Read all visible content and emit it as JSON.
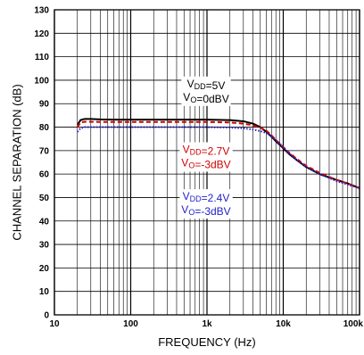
{
  "chart_data": {
    "type": "line",
    "xlabel": "FREQUENCY (Hz)",
    "ylabel": "CHANNEL SEPARATION (dB)",
    "xscale": "log",
    "xlim": [
      10,
      100000
    ],
    "ylim": [
      0,
      130
    ],
    "grid": true,
    "x_ticks": [
      {
        "value": 10,
        "label": "10"
      },
      {
        "value": 100,
        "label": "100"
      },
      {
        "value": 1000,
        "label": "1k"
      },
      {
        "value": 10000,
        "label": "10k"
      },
      {
        "value": 100000,
        "label": "100k"
      }
    ],
    "y_ticks": [
      0,
      10,
      20,
      30,
      40,
      50,
      60,
      70,
      80,
      90,
      100,
      110,
      120,
      130
    ],
    "series": [
      {
        "color": "#000000",
        "dash": "solid",
        "x": [
          20,
          22,
          25,
          30,
          40,
          60,
          100,
          200,
          500,
          1000,
          2000,
          3000,
          4000,
          5000,
          6000,
          7000,
          8000,
          9000,
          10000,
          12000,
          15000,
          20000,
          30000,
          50000,
          70000,
          100000
        ],
        "y": [
          81,
          83,
          83.5,
          83.5,
          83.3,
          83.2,
          83.2,
          83.2,
          83.2,
          83.2,
          83,
          82.5,
          81.5,
          80,
          78,
          76,
          74,
          72.5,
          71,
          68.5,
          66,
          63,
          60,
          57.5,
          56,
          54
        ]
      },
      {
        "color": "#d00000",
        "dash": "dashed",
        "x": [
          20,
          22,
          25,
          30,
          40,
          60,
          100,
          200,
          500,
          1000,
          2000,
          3000,
          4000,
          5000,
          6000,
          7000,
          8000,
          9000,
          10000,
          12000,
          15000,
          20000,
          30000,
          50000,
          70000,
          100000
        ],
        "y": [
          80,
          82,
          82.3,
          82.3,
          82.2,
          82.2,
          82.2,
          82.2,
          82.2,
          82.2,
          82,
          81.5,
          80.8,
          79.8,
          78.5,
          76.5,
          74.5,
          73,
          71.5,
          69,
          66.5,
          63.5,
          60.5,
          57.5,
          56,
          54
        ]
      },
      {
        "color": "#2222cc",
        "dash": "dotted",
        "x": [
          20,
          22,
          25,
          30,
          40,
          60,
          100,
          200,
          500,
          1000,
          2000,
          3000,
          4000,
          5000,
          6000,
          7000,
          8000,
          9000,
          10000,
          12000,
          15000,
          20000,
          30000,
          50000,
          70000,
          100000
        ],
        "y": [
          78,
          79.5,
          80,
          80,
          80,
          80,
          80,
          80,
          80,
          80,
          79.8,
          79.5,
          79,
          78.3,
          77.5,
          76,
          74.5,
          73,
          71.5,
          69,
          66,
          63,
          60,
          57,
          55.5,
          54
        ]
      }
    ],
    "annotations": [
      {
        "lines": [
          [
            {
              "t": "V",
              "sub": false
            },
            {
              "t": "DD",
              "sub": true
            },
            {
              "t": "=5V",
              "sub": false
            }
          ],
          [
            {
              "t": "V",
              "sub": false
            },
            {
              "t": "O",
              "sub": true
            },
            {
              "t": "=0dBV",
              "sub": false
            }
          ]
        ],
        "color": "#000000",
        "x": 1000,
        "y": 97
      },
      {
        "lines": [
          [
            {
              "t": "V",
              "sub": false
            },
            {
              "t": "DD",
              "sub": true
            },
            {
              "t": "=2.7V",
              "sub": false
            }
          ],
          [
            {
              "t": "V",
              "sub": false
            },
            {
              "t": "O",
              "sub": true
            },
            {
              "t": "=-3dBV",
              "sub": false
            }
          ]
        ],
        "color": "#d00000",
        "x": 1000,
        "y": 69
      },
      {
        "lines": [
          [
            {
              "t": "V",
              "sub": false
            },
            {
              "t": "DD",
              "sub": true
            },
            {
              "t": "=2.4V",
              "sub": false
            }
          ],
          [
            {
              "t": "V",
              "sub": false
            },
            {
              "t": "O",
              "sub": true
            },
            {
              "t": "=-3dBV",
              "sub": false
            }
          ]
        ],
        "color": "#2222cc",
        "x": 1000,
        "y": 49
      }
    ]
  }
}
